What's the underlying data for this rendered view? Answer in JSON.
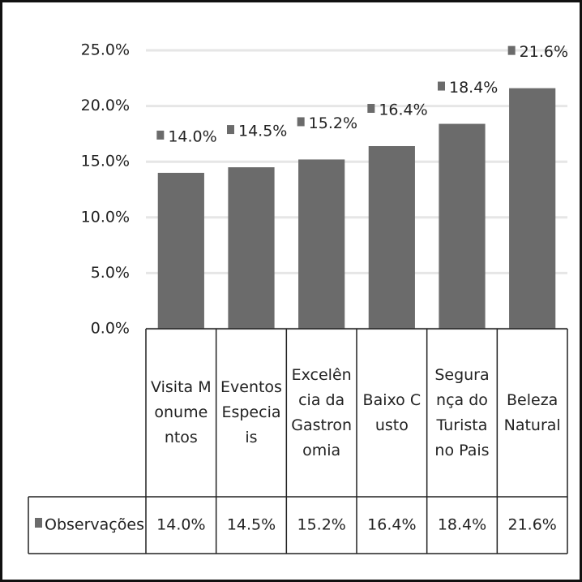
{
  "chart_data": {
    "type": "bar",
    "categories": [
      "Visita Monumentos",
      "Eventos Especiais",
      "Excelência da Gastronomia",
      "Baixo Custo",
      "Segurança do Turista no Pais",
      "Beleza Natural"
    ],
    "series": [
      {
        "name": "Observações",
        "color": "#6b6b6b",
        "values": [
          14.0,
          14.5,
          15.2,
          16.4,
          18.4,
          21.6
        ],
        "value_labels": [
          "14.0%",
          "14.5%",
          "15.2%",
          "16.4%",
          "18.4%",
          "21.6%"
        ]
      }
    ],
    "ylim": [
      0,
      25
    ],
    "yticks": [
      {
        "value": 0,
        "label": "0.0%"
      },
      {
        "value": 5,
        "label": "5.0%"
      },
      {
        "value": 10,
        "label": "10.0%"
      },
      {
        "value": 15,
        "label": "15.0%"
      },
      {
        "value": 20,
        "label": "20.0%"
      },
      {
        "value": 25,
        "label": "25.0%"
      }
    ],
    "grid": true
  }
}
